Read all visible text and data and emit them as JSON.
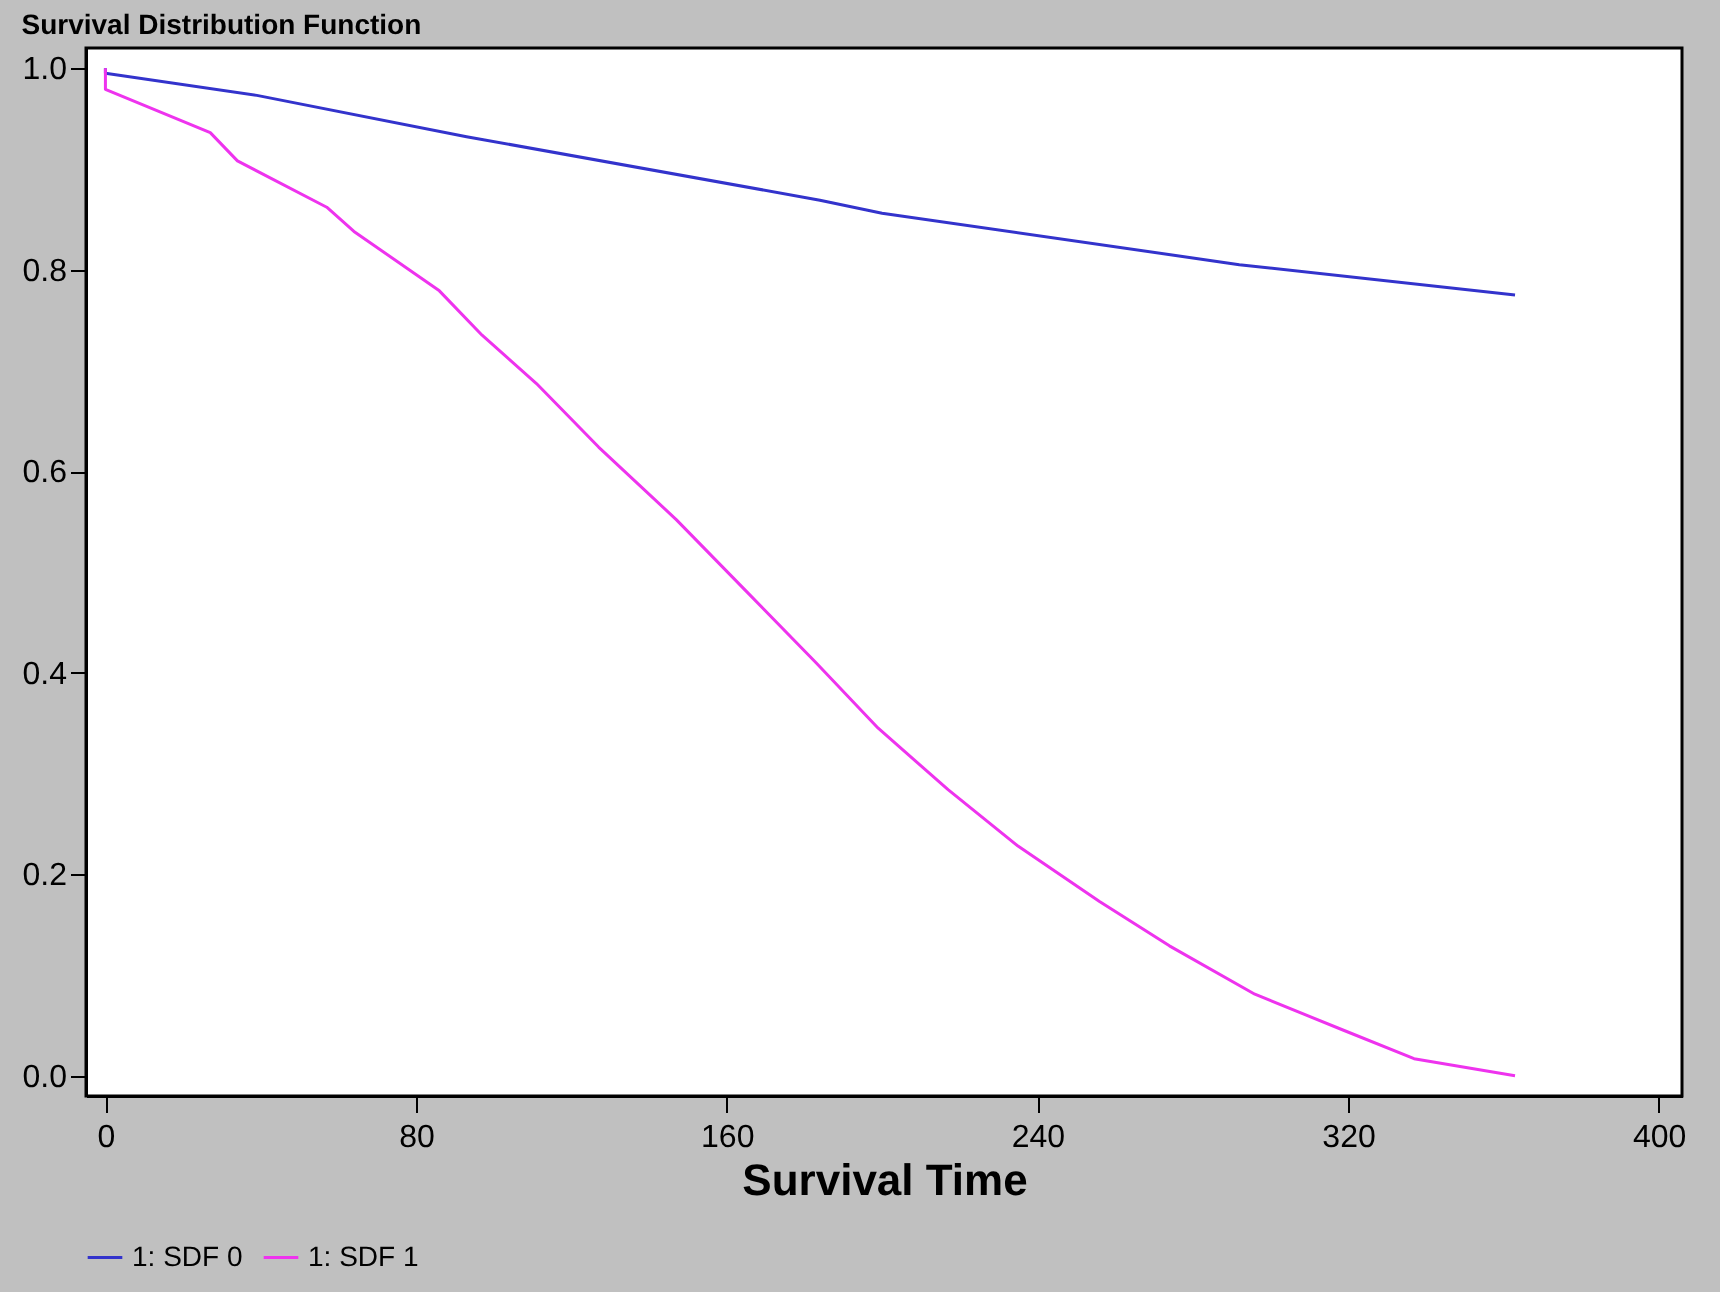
{
  "chart_data": {
    "type": "line",
    "title": "Survival Distribution Function",
    "xlabel": "Survival Time",
    "xlim": [
      -5,
      406
    ],
    "ylim": [
      -0.02,
      1.02
    ],
    "xticks": [
      0,
      80,
      160,
      240,
      320,
      400
    ],
    "yticks": [
      {
        "value": 0,
        "label": "0.0"
      },
      {
        "value": 0.2,
        "label": "0.2"
      },
      {
        "value": 0.4,
        "label": "0.4"
      },
      {
        "value": 0.6,
        "label": "0.6"
      },
      {
        "value": 0.8,
        "label": "0.8"
      },
      {
        "value": 1,
        "label": "1.0"
      }
    ],
    "grid": false,
    "legend": "bottom",
    "marker": "none",
    "line_style": "solid",
    "series": [
      {
        "name": "1: SDF 0",
        "color": "#3333cc",
        "x": [
          0,
          0,
          39,
          93,
          184,
          200,
          292,
          363
        ],
        "values": [
          1.0,
          0.995,
          0.973,
          0.932,
          0.869,
          0.856,
          0.805,
          0.775
        ]
      },
      {
        "name": "1: SDF 1",
        "color": "#ee33ee",
        "x": [
          0,
          0,
          27,
          34,
          57,
          64,
          86,
          97,
          111,
          127,
          147,
          165,
          183,
          199,
          217,
          235,
          256,
          274,
          296,
          319,
          337,
          363
        ],
        "values": [
          1.0,
          0.979,
          0.936,
          0.908,
          0.862,
          0.838,
          0.779,
          0.735,
          0.687,
          0.624,
          0.552,
          0.481,
          0.41,
          0.345,
          0.284,
          0.228,
          0.173,
          0.129,
          0.081,
          0.045,
          0.017,
          0.0
        ]
      }
    ]
  }
}
